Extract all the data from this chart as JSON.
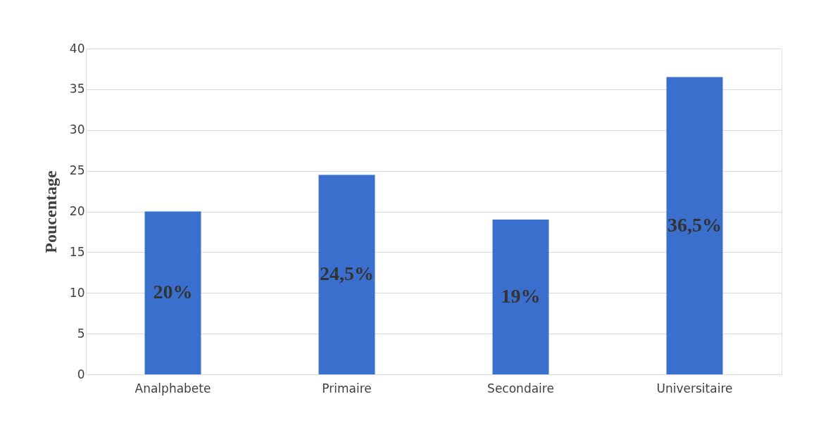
{
  "chart_data": {
    "type": "bar",
    "ylabel": "Poucentage",
    "categories": [
      "Analphabete",
      "Primaire",
      "Secondaire",
      "Universitaire"
    ],
    "values": [
      20,
      24.5,
      19,
      36.5
    ],
    "value_labels": [
      "20%",
      "24,5%",
      "19%",
      "36,5%"
    ],
    "color": "#3a6fce",
    "ylim": [
      0,
      40
    ],
    "yticks": [
      0,
      5,
      10,
      15,
      20,
      25,
      30,
      35,
      40
    ],
    "grid": "y"
  }
}
